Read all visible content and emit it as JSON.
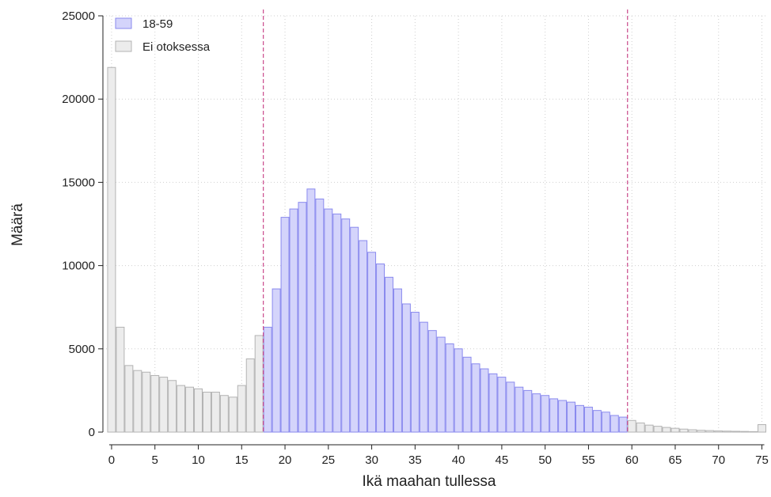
{
  "chart_data": {
    "type": "bar",
    "xlabel": "Ikä maahan tullessa",
    "ylabel": "Määrä",
    "xlim": [
      -1,
      75.5
    ],
    "ylim": [
      0,
      25000
    ],
    "xticks": [
      0,
      5,
      10,
      15,
      20,
      25,
      30,
      35,
      40,
      45,
      50,
      55,
      60,
      65,
      70,
      75
    ],
    "yticks": [
      0,
      5000,
      10000,
      15000,
      20000,
      25000
    ],
    "grid": true,
    "legend_position": "top-left",
    "reference_lines_x": [
      17.5,
      59.5
    ],
    "reference_line_color": "#c9498a",
    "series": [
      {
        "name": "18-59",
        "color_fill": "#d4d4fb",
        "color_edge": "#8a8aee",
        "x": [
          18,
          19,
          20,
          21,
          22,
          23,
          24,
          25,
          26,
          27,
          28,
          29,
          30,
          31,
          32,
          33,
          34,
          35,
          36,
          37,
          38,
          39,
          40,
          41,
          42,
          43,
          44,
          45,
          46,
          47,
          48,
          49,
          50,
          51,
          52,
          53,
          54,
          55,
          56,
          57,
          58,
          59
        ],
        "values": [
          6300,
          8600,
          12900,
          13400,
          13800,
          14600,
          14000,
          13400,
          13100,
          12800,
          12300,
          11500,
          10800,
          10100,
          9300,
          8600,
          7700,
          7200,
          6600,
          6100,
          5700,
          5300,
          5000,
          4500,
          4100,
          3800,
          3500,
          3300,
          3000,
          2700,
          2500,
          2300,
          2200,
          2000,
          1900,
          1800,
          1600,
          1500,
          1300,
          1200,
          1000,
          900
        ]
      },
      {
        "name": "Ei otoksessa",
        "color_fill": "#ececec",
        "color_edge": "#b3b3b3",
        "x": [
          0,
          1,
          2,
          3,
          4,
          5,
          6,
          7,
          8,
          9,
          10,
          11,
          12,
          13,
          14,
          15,
          16,
          17,
          60,
          61,
          62,
          63,
          64,
          65,
          66,
          67,
          68,
          69,
          70,
          71,
          72,
          73,
          74,
          75
        ],
        "values": [
          21900,
          6300,
          4000,
          3700,
          3600,
          3400,
          3300,
          3100,
          2800,
          2700,
          2600,
          2400,
          2400,
          2200,
          2100,
          2800,
          4400,
          5800,
          700,
          550,
          420,
          350,
          280,
          230,
          180,
          140,
          110,
          90,
          70,
          60,
          50,
          40,
          30,
          450
        ]
      }
    ]
  }
}
